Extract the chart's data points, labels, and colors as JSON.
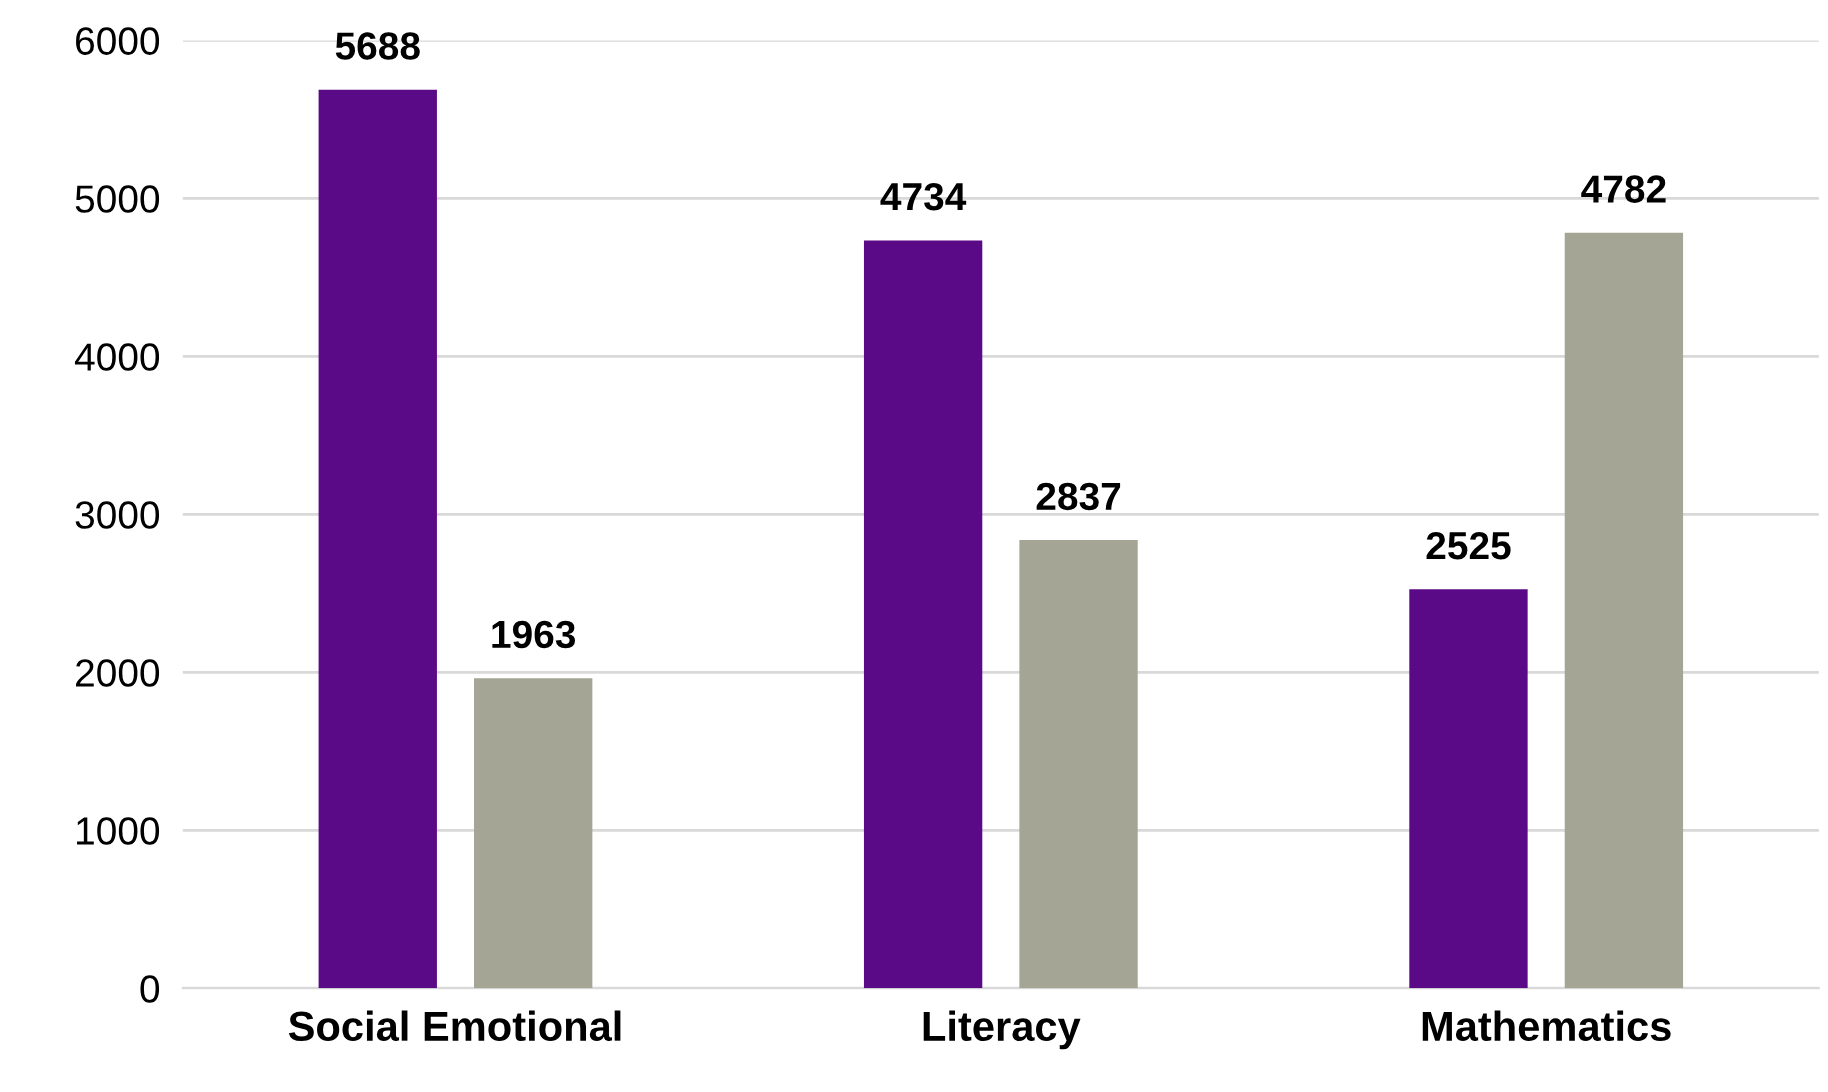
{
  "chart_data": {
    "type": "bar",
    "categories": [
      "Social Emotional",
      "Literacy",
      "Mathematics"
    ],
    "series": [
      {
        "color": "#5b0a87",
        "values": [
          5688,
          4734,
          2525
        ]
      },
      {
        "color": "#a5a596",
        "values": [
          1963,
          2837,
          4782
        ]
      }
    ],
    "ylim": [
      0,
      6000
    ],
    "yticks": [
      0,
      1000,
      2000,
      3000,
      4000,
      5000,
      6000
    ],
    "grid": "y",
    "data_labels": true
  }
}
